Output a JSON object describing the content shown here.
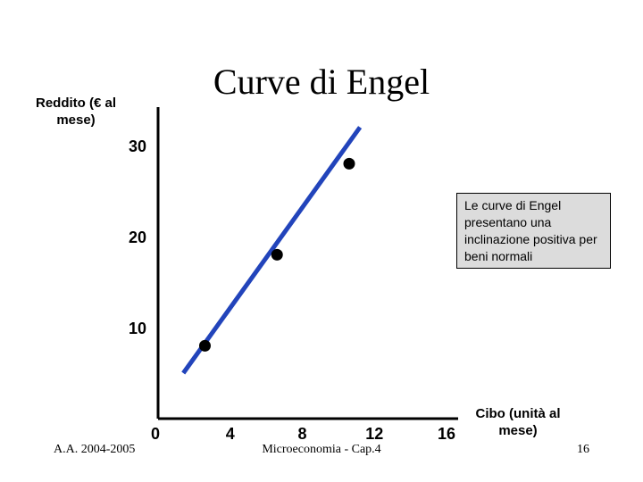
{
  "slide": {
    "title": "Curve di Engel",
    "footer_left": "A.A. 2004-2005",
    "footer_center": "Microeconomia - Cap.4",
    "page_number": "16"
  },
  "chart_data": {
    "type": "line",
    "xlabel": "Cibo (unità al mese)",
    "ylabel": "Reddito (€ al mese)",
    "x_ticks": [
      0,
      4,
      8,
      12,
      16
    ],
    "y_ticks": [
      10,
      20,
      30
    ],
    "xlim": [
      0,
      16
    ],
    "ylim": [
      0,
      30
    ],
    "line_color": "#2244bb",
    "point_color": "#000000",
    "line": {
      "x": [
        1.4,
        11.2
      ],
      "y": [
        5,
        32
      ]
    },
    "points": [
      {
        "x": 2.6,
        "y": 8
      },
      {
        "x": 6.6,
        "y": 18
      },
      {
        "x": 10.6,
        "y": 28
      }
    ],
    "annotation": "Le curve di Engel presentano una inclinazione positiva per  beni normali"
  }
}
